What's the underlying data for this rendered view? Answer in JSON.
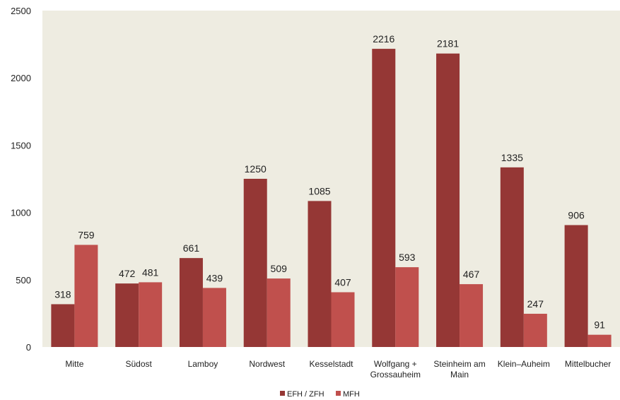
{
  "chart_data": {
    "type": "bar",
    "categories": [
      "Mitte",
      "Südost",
      "Lamboy",
      "Nordwest",
      "Kesselstadt",
      "Wolfgang + Grossauheim",
      "Steinheim am Main",
      "Klein–Auheim",
      "Mittelbucher"
    ],
    "category_lines": [
      [
        "Mitte"
      ],
      [
        "Südost"
      ],
      [
        "Lamboy"
      ],
      [
        "Nordwest"
      ],
      [
        "Kesselstadt"
      ],
      [
        "Wolfgang +",
        "Grossauheim"
      ],
      [
        "Steinheim am",
        "Main"
      ],
      [
        "Klein–Auheim"
      ],
      [
        "Mittelbucher"
      ]
    ],
    "series": [
      {
        "name": "EFH / ZFH",
        "color": "#953735",
        "values": [
          318,
          472,
          661,
          1250,
          1085,
          2216,
          2181,
          1335,
          906
        ]
      },
      {
        "name": "MFH",
        "color": "#C0504D",
        "values": [
          759,
          481,
          439,
          509,
          407,
          593,
          467,
          247,
          91
        ]
      }
    ],
    "title": "",
    "xlabel": "",
    "ylabel": "",
    "ylim": [
      0,
      2500
    ],
    "yticks": [
      0,
      500,
      1000,
      1500,
      2000,
      2500
    ],
    "grid": false,
    "plot_background": "#EEECE1",
    "legend_position": "bottom"
  }
}
